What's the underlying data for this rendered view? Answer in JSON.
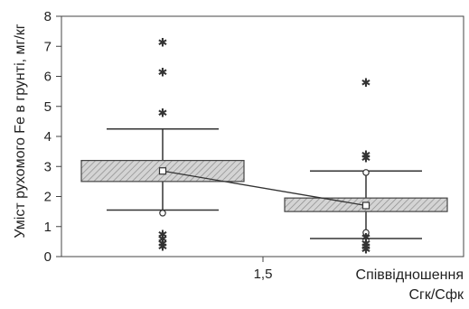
{
  "chart_data": {
    "type": "box",
    "ylabel": "Уміст рухомого Fe в грунті, мг/кг",
    "xlabel_line1": "Співвідношення",
    "xlabel_line2": "Сгк/Сфк",
    "ylim": [
      0,
      8
    ],
    "yticks": [
      "0",
      "1",
      "2",
      "3",
      "4",
      "5",
      "6",
      "7",
      "8"
    ],
    "xtick_label": "1,5",
    "grid": false,
    "boxes": [
      {
        "mean": 2.85,
        "q1": 2.5,
        "q3": 3.2,
        "whisker_low": 1.55,
        "whisker_high": 4.25,
        "open_points": [
          1.45
        ],
        "outliers_star": [
          7.15,
          6.15,
          4.8,
          0.75,
          0.6,
          0.45,
          0.35
        ]
      },
      {
        "mean": 1.7,
        "q1": 1.5,
        "q3": 1.95,
        "whisker_low": 0.6,
        "whisker_high": 2.85,
        "open_points": [
          2.8,
          0.8
        ],
        "outliers_star": [
          5.8,
          3.4,
          3.3,
          0.65,
          0.45,
          0.35,
          0.25
        ]
      }
    ],
    "mean_line": true
  }
}
